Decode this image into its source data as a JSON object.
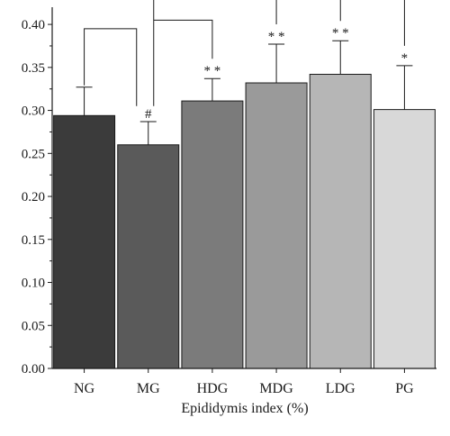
{
  "chart_data": {
    "type": "bar",
    "title": "",
    "xlabel": "Epididymis index (%)",
    "ylabel": "",
    "ylim": [
      0,
      0.42
    ],
    "yticks": [
      "0.00",
      "0.05",
      "0.10",
      "0.15",
      "0.20",
      "0.25",
      "0.30",
      "0.35",
      "0.40"
    ],
    "categories": [
      "NG",
      "MG",
      "HDG",
      "MDG",
      "LDG",
      "PG"
    ],
    "values": [
      0.294,
      0.26,
      0.311,
      0.332,
      0.342,
      0.301
    ],
    "errors": [
      0.033,
      0.027,
      0.026,
      0.045,
      0.039,
      0.051
    ],
    "colors": [
      "#3b3b3b",
      "#5a5a5a",
      "#7b7b7b",
      "#9a9a9a",
      "#b6b6b6",
      "#d8d8d8"
    ],
    "significance": [
      "",
      "#",
      "* *",
      "* *",
      "* *",
      "*"
    ],
    "comparisons": [
      {
        "from": "NG",
        "to": "MG"
      },
      {
        "from": "MG",
        "to": "HDG"
      },
      {
        "from": "MG",
        "to": "MDG"
      },
      {
        "from": "MG",
        "to": "LDG"
      },
      {
        "from": "MG",
        "to": "PG"
      }
    ]
  }
}
